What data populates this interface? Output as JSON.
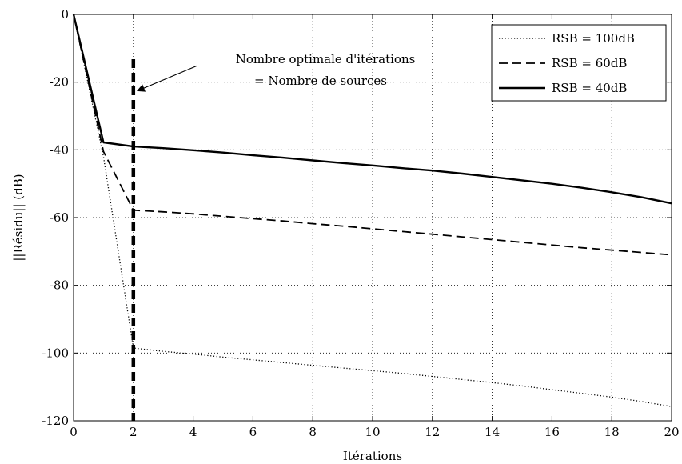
{
  "chart_data": {
    "type": "line",
    "title": "",
    "xlabel": "Itérations",
    "ylabel": "||Résidu|| (dB)",
    "xlim": [
      0,
      20
    ],
    "ylim": [
      -120,
      0
    ],
    "xticks": [
      0,
      2,
      4,
      6,
      8,
      10,
      12,
      14,
      16,
      18,
      20
    ],
    "yticks": [
      0,
      -20,
      -40,
      -60,
      -80,
      -100,
      -120
    ],
    "grid": true,
    "legend_position": "top-right",
    "series": [
      {
        "name": "RSB = 100dB",
        "style": "dotted",
        "x": [
          0,
          1,
          2,
          3,
          4,
          5,
          6,
          7,
          8,
          9,
          10,
          11,
          12,
          13,
          14,
          15,
          16,
          17,
          18,
          19,
          20
        ],
        "y": [
          0,
          -42,
          -98.5,
          -99.5,
          -100.3,
          -101.2,
          -102,
          -102.8,
          -103.6,
          -104.4,
          -105.2,
          -106,
          -106.9,
          -107.8,
          -108.7,
          -109.7,
          -110.8,
          -111.9,
          -113,
          -114.3,
          -115.8
        ]
      },
      {
        "name": "RSB = 60dB",
        "style": "dashed",
        "x": [
          0,
          1,
          2,
          3,
          4,
          5,
          6,
          7,
          8,
          9,
          10,
          11,
          12,
          13,
          14,
          15,
          16,
          17,
          18,
          19,
          20
        ],
        "y": [
          0,
          -40.5,
          -57.8,
          -58.3,
          -58.9,
          -59.6,
          -60.3,
          -61,
          -61.8,
          -62.5,
          -63.3,
          -64.1,
          -64.9,
          -65.7,
          -66.5,
          -67.3,
          -68.1,
          -68.9,
          -69.6,
          -70.3,
          -71
        ]
      },
      {
        "name": "RSB = 40dB",
        "style": "solid",
        "x": [
          0,
          1,
          2,
          3,
          4,
          5,
          6,
          7,
          8,
          9,
          10,
          11,
          12,
          13,
          14,
          15,
          16,
          17,
          18,
          19,
          20
        ],
        "y": [
          0,
          -37.8,
          -39,
          -39.5,
          -40.1,
          -40.8,
          -41.6,
          -42.3,
          -43.1,
          -43.9,
          -44.6,
          -45.4,
          -46.1,
          -47,
          -48,
          -49,
          -50,
          -51.2,
          -52.5,
          -54,
          -55.8
        ]
      }
    ],
    "vertical_marker": {
      "x": 2,
      "style": "thick-dashed"
    },
    "annotation": {
      "lines": [
        "Nombre optimale d'itérations",
        "= Nombre de sources"
      ],
      "arrow_target": {
        "x": 2,
        "y": -22
      }
    }
  }
}
